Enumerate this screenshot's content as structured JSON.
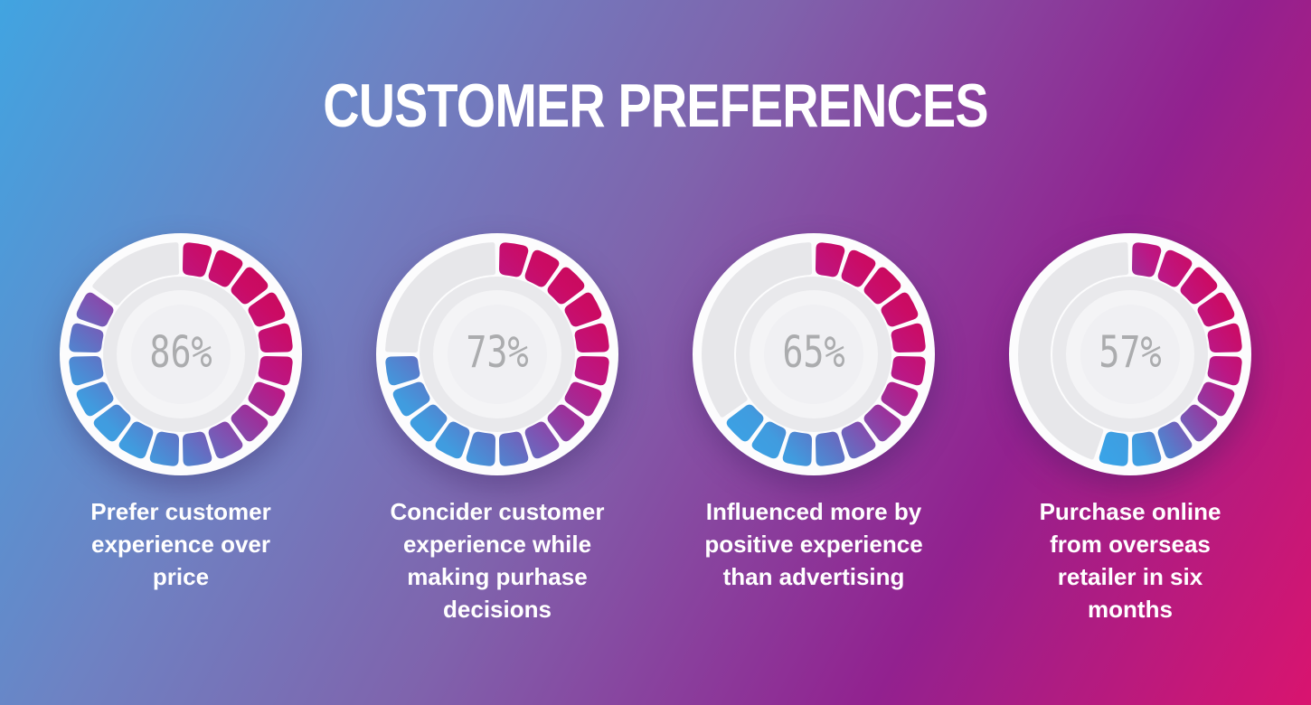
{
  "title": "CUSTOMER PREFERENCES",
  "background": {
    "top_left": "#41a4e1",
    "bottom_left": "#6e82c3",
    "center": "#7f64ad",
    "top_right": "#92218f",
    "bottom_right": "#d9146f"
  },
  "gauge_style": {
    "segments_total": 20,
    "segment_gap_deg": 2.4,
    "ring_outer_r": 124,
    "ring_inner_r": 88,
    "corner_radius": 7,
    "plate_radius": 134,
    "plate_color": "#fcfcfd",
    "track_color": "#e7e7ea",
    "inner_ring_color": "#e9e9ec",
    "inner_disc_color": "#f4f4f6",
    "center_disc_color": "#f0f0f3",
    "value_color": "#abacae",
    "gradient_stops": [
      [
        "0",
        "#c60950"
      ],
      [
        "0.2",
        "#cb0b64"
      ],
      [
        "0.35",
        "#bc1784"
      ],
      [
        "0.48",
        "#9a339c"
      ],
      [
        "0.59",
        "#7d55b3"
      ],
      [
        "0.7",
        "#5b78c8"
      ],
      [
        "0.82",
        "#409cdf"
      ],
      [
        "1",
        "#38a5e9"
      ]
    ]
  },
  "chart_data": {
    "type": "donut",
    "title": "CUSTOMER PREFERENCES",
    "unit": "%",
    "fill_start": "top",
    "fill_direction": "clockwise",
    "gauges": [
      {
        "value": 86,
        "value_label": "86%",
        "label": "Prefer customer\nexperience over\nprice"
      },
      {
        "value": 73,
        "value_label": "73%",
        "label": "Concider customer\nexperience while\nmaking purhase\ndecisions"
      },
      {
        "value": 65,
        "value_label": "65%",
        "label": "Influenced more by\npositive experience\nthan advertising"
      },
      {
        "value": 57,
        "value_label": "57%",
        "label": "Purchase online\nfrom overseas\nretailer in six\nmonths"
      }
    ]
  }
}
